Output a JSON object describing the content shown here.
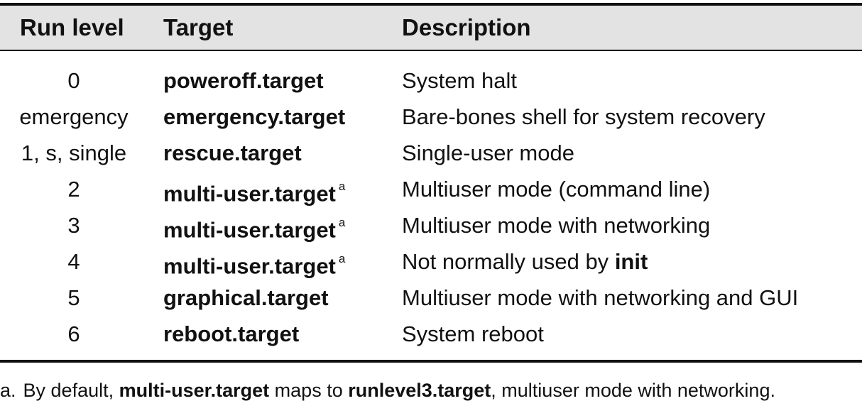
{
  "table": {
    "headers": {
      "run_level": "Run level",
      "target": "Target",
      "description": "Description"
    },
    "rows": [
      {
        "run_level": "0",
        "target": "poweroff.target",
        "footnote_ref": "",
        "description": "System halt",
        "desc_bold": "",
        "desc_after": ""
      },
      {
        "run_level": "emergency",
        "target": "emergency.target",
        "footnote_ref": "",
        "description": "Bare-bones shell for system recovery",
        "desc_bold": "",
        "desc_after": ""
      },
      {
        "run_level": "1, s, single",
        "target": "rescue.target",
        "footnote_ref": "",
        "description": "Single-user mode",
        "desc_bold": "",
        "desc_after": ""
      },
      {
        "run_level": "2",
        "target": "multi-user.target",
        "footnote_ref": "a",
        "description": "Multiuser mode (command line)",
        "desc_bold": "",
        "desc_after": ""
      },
      {
        "run_level": "3",
        "target": "multi-user.target",
        "footnote_ref": "a",
        "description": "Multiuser mode with networking",
        "desc_bold": "",
        "desc_after": ""
      },
      {
        "run_level": "4",
        "target": "multi-user.target",
        "footnote_ref": "a",
        "description": "Not normally used by ",
        "desc_bold": "init",
        "desc_after": ""
      },
      {
        "run_level": "5",
        "target": "graphical.target",
        "footnote_ref": "",
        "description": "Multiuser mode with networking and GUI",
        "desc_bold": "",
        "desc_after": ""
      },
      {
        "run_level": "6",
        "target": "reboot.target",
        "footnote_ref": "",
        "description": "System reboot",
        "desc_bold": "",
        "desc_after": ""
      }
    ]
  },
  "footnote": {
    "mark": "a.",
    "text_1": "By default, ",
    "bold_1": "multi-user.target",
    "text_2": " maps to ",
    "bold_2": "runlevel3.target",
    "text_3": ", multiuser mode with networking."
  }
}
